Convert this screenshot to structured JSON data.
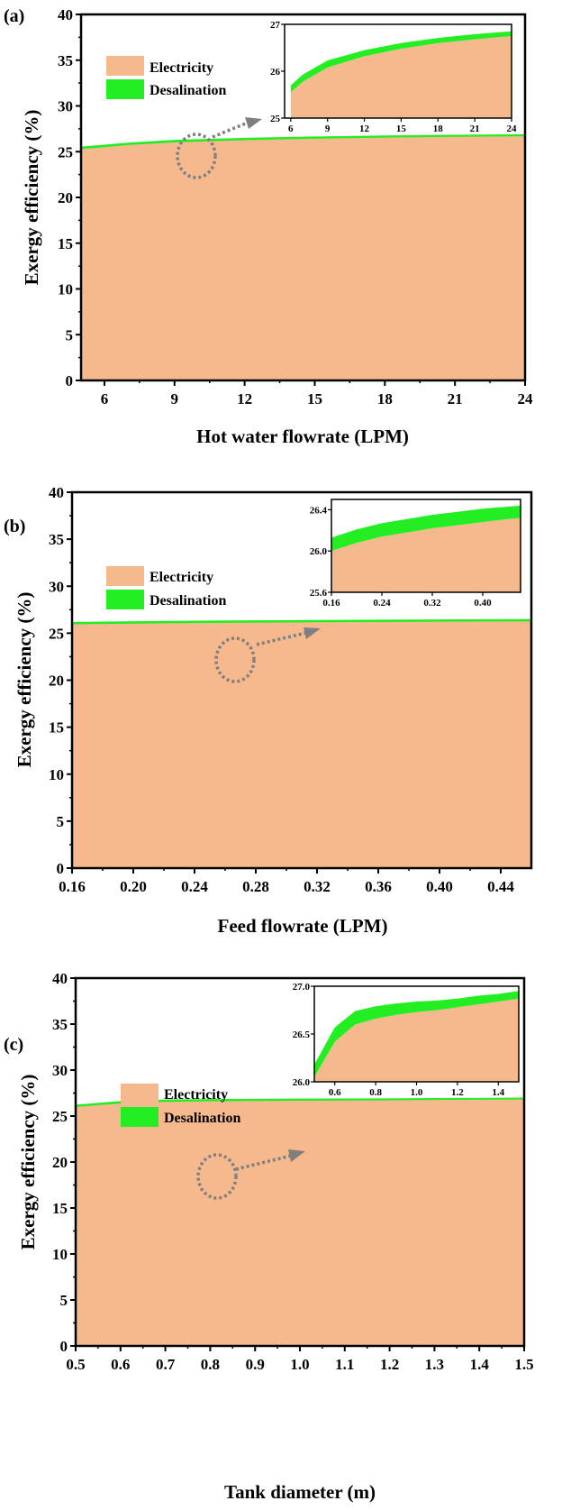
{
  "colors": {
    "electricity": "#f5b98d",
    "desalination": "#22ee22",
    "pointer": "#7f7f7f"
  },
  "chart_data": [
    {
      "type": "area",
      "panel_label": "(a)",
      "xlabel": "Hot water flowrate (LPM)",
      "ylabel": "Exergy efficiency (%)",
      "xlim": [
        5,
        24
      ],
      "ylim": [
        0,
        40
      ],
      "xticks": [
        "6",
        "9",
        "12",
        "15",
        "18",
        "21",
        "24"
      ],
      "yticks": [
        "0",
        "5",
        "10",
        "15",
        "20",
        "25",
        "30",
        "35",
        "40"
      ],
      "legend": [
        "Electricity",
        "Desalination"
      ],
      "legend_position": "top-left",
      "x": [
        5,
        6,
        7,
        9,
        12,
        15,
        18,
        21,
        24
      ],
      "series": [
        {
          "name": "Electricity",
          "values": [
            25.35,
            25.55,
            25.78,
            26.08,
            26.32,
            26.48,
            26.6,
            26.68,
            26.75
          ]
        },
        {
          "name": "Desalination",
          "values": [
            0.15,
            0.15,
            0.15,
            0.15,
            0.13,
            0.12,
            0.11,
            0.11,
            0.1
          ]
        }
      ],
      "inset": {
        "xlim": [
          5.5,
          24
        ],
        "ylim": [
          25,
          27
        ],
        "xticks": [
          "6",
          "9",
          "12",
          "15",
          "18",
          "21",
          "24"
        ],
        "yticks": [
          "25",
          "26",
          "27"
        ]
      }
    },
    {
      "type": "area",
      "panel_label": "(b)",
      "xlabel": "Feed flowrate (LPM)",
      "ylabel": "Exergy efficiency (%)",
      "xlim": [
        0.16,
        0.46
      ],
      "ylim": [
        0,
        40
      ],
      "xticks": [
        "0.16",
        "0.20",
        "0.24",
        "0.28",
        "0.32",
        "0.36",
        "0.40",
        "0.44"
      ],
      "yticks": [
        "0",
        "5",
        "10",
        "15",
        "20",
        "25",
        "30",
        "35",
        "40"
      ],
      "legend": [
        "Electricity",
        "Desalination"
      ],
      "legend_position": "top-left",
      "x": [
        0.16,
        0.2,
        0.24,
        0.28,
        0.32,
        0.36,
        0.4,
        0.44,
        0.46
      ],
      "series": [
        {
          "name": "Electricity",
          "values": [
            26.0,
            26.08,
            26.14,
            26.18,
            26.22,
            26.25,
            26.28,
            26.31,
            26.32
          ]
        },
        {
          "name": "Desalination",
          "values": [
            0.13,
            0.13,
            0.13,
            0.13,
            0.13,
            0.13,
            0.13,
            0.12,
            0.12
          ]
        }
      ],
      "inset": {
        "xlim": [
          0.16,
          0.46
        ],
        "ylim": [
          25.6,
          26.5
        ],
        "xticks": [
          "0.16",
          "0.24",
          "0.32",
          "0.40"
        ],
        "yticks": [
          "25.6",
          "26.0",
          "26.4"
        ]
      }
    },
    {
      "type": "area",
      "panel_label": "(c)",
      "xlabel": "Tank diameter (m)",
      "ylabel": "Exergy efficiency (%)",
      "xlim": [
        0.5,
        1.5
      ],
      "ylim": [
        0,
        40
      ],
      "xticks": [
        "0.5",
        "0.6",
        "0.7",
        "0.8",
        "0.9",
        "1.0",
        "1.1",
        "1.2",
        "1.3",
        "1.4",
        "1.5"
      ],
      "yticks": [
        "0",
        "5",
        "10",
        "15",
        "20",
        "25",
        "30",
        "35",
        "40"
      ],
      "legend": [
        "Electricity",
        "Desalination"
      ],
      "legend_position": "top-left",
      "x": [
        0.5,
        0.6,
        0.7,
        0.8,
        0.9,
        1.0,
        1.1,
        1.2,
        1.3,
        1.4,
        1.5
      ],
      "series": [
        {
          "name": "Electricity",
          "values": [
            26.05,
            26.42,
            26.6,
            26.66,
            26.7,
            26.73,
            26.75,
            26.78,
            26.81,
            26.84,
            26.87
          ]
        },
        {
          "name": "Desalination",
          "values": [
            0.13,
            0.15,
            0.14,
            0.13,
            0.12,
            0.11,
            0.1,
            0.09,
            0.09,
            0.08,
            0.08
          ]
        }
      ],
      "inset": {
        "xlim": [
          0.5,
          1.5
        ],
        "ylim": [
          26.0,
          27.0
        ],
        "xticks": [
          "0.6",
          "0.8",
          "1.0",
          "1.2",
          "1.4"
        ],
        "yticks": [
          "26.0",
          "26.5",
          "27.0"
        ]
      }
    }
  ]
}
